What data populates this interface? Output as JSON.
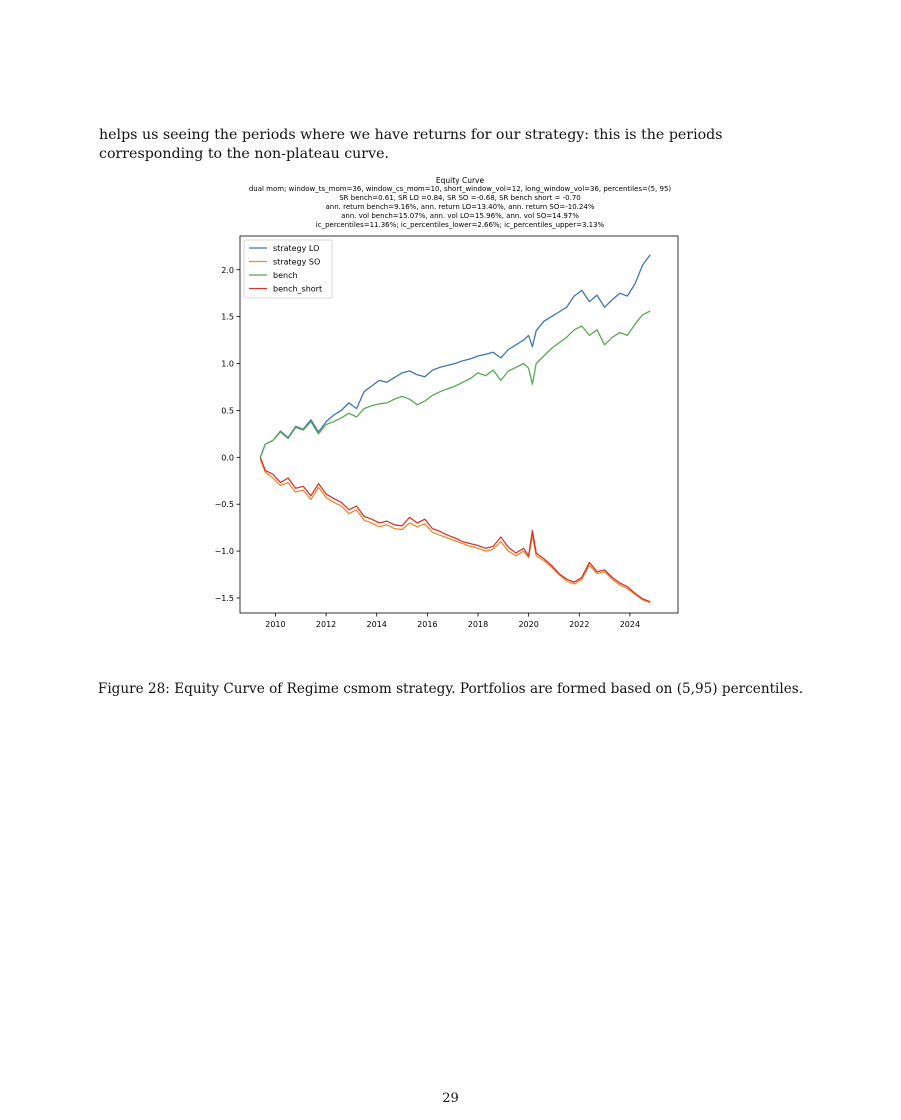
{
  "body_text": "helps us seeing the periods where we have returns for our strategy: this is the periods corresponding to the non-plateau curve.",
  "caption": "Figure 28: Equity Curve of Regime csmom strategy. Portfolios are formed based on (5,95) percentiles.",
  "page_number": "29",
  "chart_data": {
    "type": "line",
    "title": "Equity Curve",
    "subtitle_lines": [
      "dual mom; window_ts_mom=36, window_cs_mom=10, short_window_vol=12, long_window_vol=36, percentiles=(5, 95)",
      "SR bench=0.61, SR LO =0.84, SR SO =-0.68, SR bench short = -0.70",
      "ann. return bench=9.16%, ann. return LO=13.40%, ann. return SO=-10.24%",
      "ann. vol bench=15.07%, ann. vol LO=15.96%, ann. vol SO=14.97%",
      "ic_percentiles=11.36%; ic_percentiles_lower=2.66%; ic_percentiles_upper=3.13%"
    ],
    "xlabel": "",
    "ylabel": "",
    "xlim": [
      2008.6,
      2025.9
    ],
    "ylim": [
      -1.66,
      2.36
    ],
    "x_ticks": [
      "2010",
      "2012",
      "2014",
      "2016",
      "2018",
      "2020",
      "2022",
      "2024"
    ],
    "x_tick_values": [
      2010,
      2012,
      2014,
      2016,
      2018,
      2020,
      2022,
      2024
    ],
    "y_ticks": [
      "−1.5",
      "−1.0",
      "−0.5",
      "0.0",
      "0.5",
      "1.0",
      "1.5",
      "2.0"
    ],
    "y_tick_values": [
      -1.5,
      -1.0,
      -0.5,
      0.0,
      0.5,
      1.0,
      1.5,
      2.0
    ],
    "legend_position": "top-left",
    "grid": false,
    "series": [
      {
        "name": "strategy LO",
        "color": "#3f76ad",
        "x": [
          2009.4,
          2009.6,
          2009.9,
          2010.2,
          2010.5,
          2010.8,
          2011.1,
          2011.4,
          2011.7,
          2012.0,
          2012.3,
          2012.6,
          2012.9,
          2013.2,
          2013.5,
          2013.8,
          2014.1,
          2014.4,
          2014.7,
          2015.0,
          2015.3,
          2015.6,
          2015.9,
          2016.2,
          2016.5,
          2016.8,
          2017.1,
          2017.4,
          2017.7,
          2018.0,
          2018.3,
          2018.6,
          2018.9,
          2019.2,
          2019.5,
          2019.8,
          2020.0,
          2020.15,
          2020.3,
          2020.6,
          2020.9,
          2021.2,
          2021.5,
          2021.8,
          2022.1,
          2022.4,
          2022.7,
          2023.0,
          2023.3,
          2023.6,
          2023.9,
          2024.2,
          2024.5,
          2024.8
        ],
        "y": [
          0.0,
          0.14,
          0.18,
          0.28,
          0.21,
          0.33,
          0.3,
          0.4,
          0.27,
          0.38,
          0.45,
          0.5,
          0.58,
          0.52,
          0.7,
          0.76,
          0.82,
          0.8,
          0.85,
          0.9,
          0.92,
          0.88,
          0.86,
          0.93,
          0.96,
          0.98,
          1.0,
          1.03,
          1.05,
          1.08,
          1.1,
          1.12,
          1.06,
          1.15,
          1.2,
          1.25,
          1.3,
          1.18,
          1.35,
          1.45,
          1.5,
          1.55,
          1.6,
          1.72,
          1.78,
          1.66,
          1.73,
          1.6,
          1.68,
          1.75,
          1.72,
          1.85,
          2.05,
          2.16
        ]
      },
      {
        "name": "strategy SO",
        "color": "#ef8732",
        "x": [
          2009.4,
          2009.6,
          2009.9,
          2010.2,
          2010.5,
          2010.8,
          2011.1,
          2011.4,
          2011.7,
          2012.0,
          2012.3,
          2012.6,
          2012.9,
          2013.2,
          2013.5,
          2013.8,
          2014.1,
          2014.4,
          2014.7,
          2015.0,
          2015.3,
          2015.6,
          2015.9,
          2016.2,
          2016.5,
          2016.8,
          2017.1,
          2017.4,
          2017.7,
          2018.0,
          2018.3,
          2018.6,
          2018.9,
          2019.2,
          2019.5,
          2019.8,
          2020.0,
          2020.15,
          2020.3,
          2020.6,
          2020.9,
          2021.2,
          2021.5,
          2021.8,
          2022.1,
          2022.4,
          2022.7,
          2023.0,
          2023.3,
          2023.6,
          2023.9,
          2024.2,
          2024.5,
          2024.8
        ],
        "y": [
          -0.02,
          -0.16,
          -0.22,
          -0.3,
          -0.27,
          -0.37,
          -0.35,
          -0.45,
          -0.32,
          -0.43,
          -0.48,
          -0.52,
          -0.6,
          -0.56,
          -0.67,
          -0.7,
          -0.74,
          -0.72,
          -0.76,
          -0.77,
          -0.7,
          -0.74,
          -0.71,
          -0.8,
          -0.83,
          -0.86,
          -0.89,
          -0.92,
          -0.95,
          -0.97,
          -1.0,
          -0.98,
          -0.9,
          -1.0,
          -1.05,
          -1.0,
          -1.07,
          -0.83,
          -1.05,
          -1.1,
          -1.17,
          -1.25,
          -1.32,
          -1.35,
          -1.3,
          -1.15,
          -1.24,
          -1.22,
          -1.3,
          -1.36,
          -1.4,
          -1.46,
          -1.52,
          -1.55
        ]
      },
      {
        "name": "bench",
        "color": "#56a952",
        "x": [
          2009.4,
          2009.6,
          2009.9,
          2010.2,
          2010.5,
          2010.8,
          2011.1,
          2011.4,
          2011.7,
          2012.0,
          2012.3,
          2012.6,
          2012.9,
          2013.2,
          2013.5,
          2013.8,
          2014.1,
          2014.4,
          2014.7,
          2015.0,
          2015.3,
          2015.6,
          2015.9,
          2016.2,
          2016.5,
          2016.8,
          2017.1,
          2017.4,
          2017.7,
          2018.0,
          2018.3,
          2018.6,
          2018.9,
          2019.2,
          2019.5,
          2019.8,
          2020.0,
          2020.15,
          2020.3,
          2020.6,
          2020.9,
          2021.2,
          2021.5,
          2021.8,
          2022.1,
          2022.4,
          2022.7,
          2023.0,
          2023.3,
          2023.6,
          2023.9,
          2024.2,
          2024.5,
          2024.8
        ],
        "y": [
          0.0,
          0.14,
          0.18,
          0.27,
          0.2,
          0.32,
          0.29,
          0.38,
          0.25,
          0.35,
          0.38,
          0.42,
          0.47,
          0.43,
          0.52,
          0.55,
          0.57,
          0.58,
          0.62,
          0.65,
          0.62,
          0.56,
          0.6,
          0.66,
          0.7,
          0.73,
          0.76,
          0.8,
          0.84,
          0.9,
          0.87,
          0.93,
          0.82,
          0.92,
          0.96,
          1.0,
          0.95,
          0.78,
          1.0,
          1.08,
          1.16,
          1.22,
          1.28,
          1.36,
          1.4,
          1.3,
          1.36,
          1.2,
          1.28,
          1.33,
          1.3,
          1.42,
          1.52,
          1.56
        ]
      },
      {
        "name": "bench_short",
        "color": "#d1382d",
        "x": [
          2009.4,
          2009.6,
          2009.9,
          2010.2,
          2010.5,
          2010.8,
          2011.1,
          2011.4,
          2011.7,
          2012.0,
          2012.3,
          2012.6,
          2012.9,
          2013.2,
          2013.5,
          2013.8,
          2014.1,
          2014.4,
          2014.7,
          2015.0,
          2015.3,
          2015.6,
          2015.9,
          2016.2,
          2016.5,
          2016.8,
          2017.1,
          2017.4,
          2017.7,
          2018.0,
          2018.3,
          2018.6,
          2018.9,
          2019.2,
          2019.5,
          2019.8,
          2020.0,
          2020.15,
          2020.3,
          2020.6,
          2020.9,
          2021.2,
          2021.5,
          2021.8,
          2022.1,
          2022.4,
          2022.7,
          2023.0,
          2023.3,
          2023.6,
          2023.9,
          2024.2,
          2024.5,
          2024.8
        ],
        "y": [
          0.0,
          -0.14,
          -0.18,
          -0.27,
          -0.22,
          -0.33,
          -0.31,
          -0.41,
          -0.28,
          -0.39,
          -0.44,
          -0.48,
          -0.56,
          -0.52,
          -0.63,
          -0.66,
          -0.7,
          -0.68,
          -0.72,
          -0.73,
          -0.64,
          -0.7,
          -0.66,
          -0.76,
          -0.79,
          -0.83,
          -0.86,
          -0.9,
          -0.92,
          -0.94,
          -0.97,
          -0.95,
          -0.85,
          -0.96,
          -1.02,
          -0.97,
          -1.05,
          -0.78,
          -1.02,
          -1.08,
          -1.15,
          -1.24,
          -1.3,
          -1.33,
          -1.28,
          -1.12,
          -1.22,
          -1.2,
          -1.28,
          -1.34,
          -1.38,
          -1.45,
          -1.51,
          -1.54
        ]
      }
    ]
  }
}
